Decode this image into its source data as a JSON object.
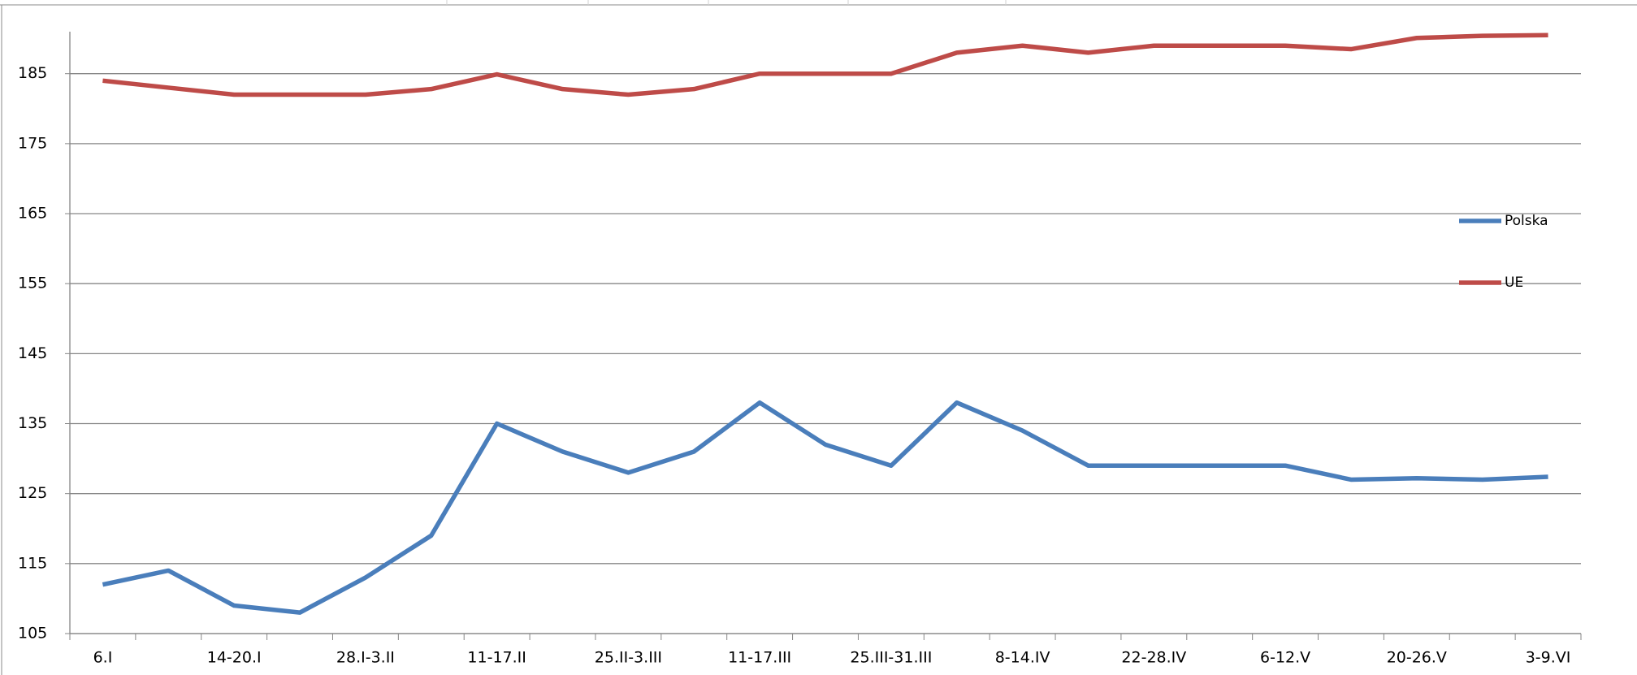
{
  "chart_data": {
    "type": "line",
    "categories": [
      "6.I",
      null,
      "14-20.I",
      null,
      "28.I-3.II",
      null,
      "11-17.II",
      null,
      "25.II-3.III",
      null,
      "11-17.III",
      null,
      "25.III-31.III",
      null,
      "8-14.IV",
      null,
      "22-28.IV",
      null,
      "6-12.V",
      null,
      "20-26.V",
      null,
      "3-9.VI"
    ],
    "series": [
      {
        "name": "Polska",
        "color": "#4a7ebb",
        "values": [
          112,
          114,
          109,
          108,
          113,
          119,
          135,
          131,
          128,
          131,
          138,
          132,
          129,
          138,
          134,
          129,
          129,
          129,
          129,
          127,
          127.2,
          127,
          127.4
        ]
      },
      {
        "name": "UE",
        "color": "#be4b48",
        "values": [
          184,
          183,
          182,
          182,
          182,
          182.8,
          184.9,
          182.8,
          182,
          182.8,
          185,
          185,
          185,
          188,
          189,
          188,
          189,
          189,
          189,
          188.5,
          190.1,
          190.4,
          190.5
        ]
      }
    ],
    "ylim": [
      105,
      191
    ],
    "yticks": [
      105,
      115,
      125,
      135,
      145,
      155,
      165,
      175,
      185
    ],
    "grid": true,
    "legend": "right"
  }
}
